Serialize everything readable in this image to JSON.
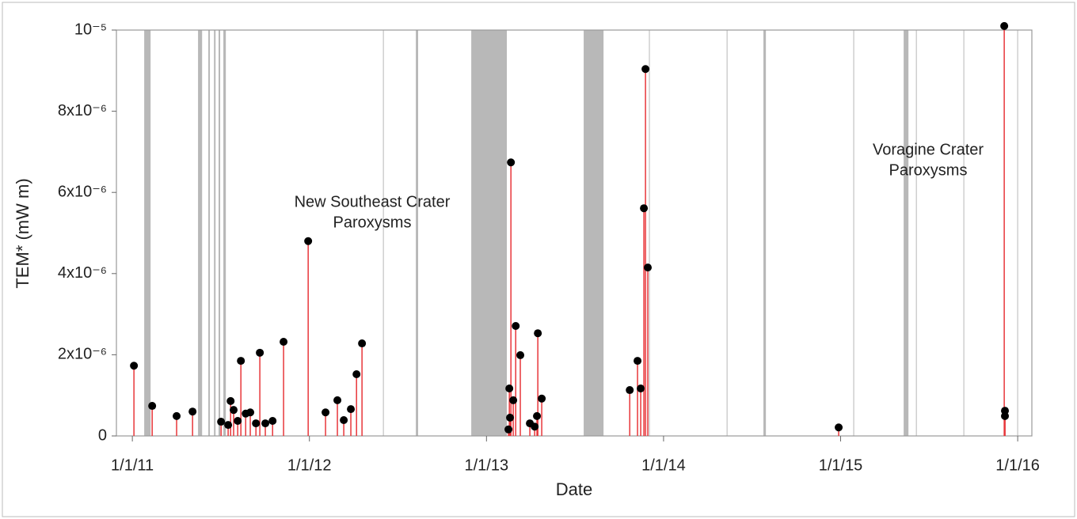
{
  "chart_data": {
    "type": "stem",
    "xlabel": "Date",
    "ylabel": "TEM* (mW m)",
    "annotations": [
      [
        "New Southeast Crater",
        "Paroxysms"
      ],
      [
        "Voragine Crater",
        "Paroxysms"
      ]
    ],
    "xlim": [
      2010.91,
      2016.08
    ],
    "xticks": [
      {
        "value": 2011,
        "label": "1/1/11"
      },
      {
        "value": 2012,
        "label": "1/1/12"
      },
      {
        "value": 2013,
        "label": "1/1/13"
      },
      {
        "value": 2014,
        "label": "1/1/14"
      },
      {
        "value": 2015,
        "label": "1/1/15"
      },
      {
        "value": 2016,
        "label": "1/1/16"
      }
    ],
    "ylim": [
      0,
      1e-05
    ],
    "yticks": [
      0,
      {
        "value": 2e-06,
        "label": "2x10⁻⁶"
      },
      {
        "value": 4e-06,
        "label": "4x10⁻⁶"
      },
      {
        "value": 6e-06,
        "label": "6x10⁻⁶"
      },
      {
        "value": 8e-06,
        "label": "8x10⁻⁶"
      },
      {
        "value": 1e-05,
        "label": "10⁻⁵"
      }
    ],
    "stem_color": "#e8363a",
    "marker_color": "#000000",
    "band_color": "#b8b8b8",
    "line_color": "#cfcfcf",
    "bands": [
      [
        2011.067,
        2011.103
      ],
      [
        2011.371,
        2011.394
      ],
      [
        2011.429,
        2011.438
      ],
      [
        2011.461,
        2011.47
      ],
      [
        2011.487,
        2011.496
      ],
      [
        2011.514,
        2011.528
      ],
      [
        2012.601,
        2012.614
      ],
      [
        2012.914,
        2013.115
      ],
      [
        2013.549,
        2013.661
      ],
      [
        2014.564,
        2014.578
      ],
      [
        2015.356,
        2015.383
      ]
    ],
    "lines": [
      2012.418,
      2013.92,
      2014.359,
      2015.074,
      2015.428,
      2015.696,
      2016.0
    ],
    "x": [
      2011.009,
      2011.112,
      2011.25,
      2011.34,
      2011.501,
      2011.541,
      2011.555,
      2011.572,
      2011.595,
      2011.613,
      2011.64,
      2011.666,
      2011.698,
      2011.72,
      2011.751,
      2011.792,
      2011.854,
      2011.993,
      2012.091,
      2012.158,
      2012.194,
      2012.234,
      2012.266,
      2012.297,
      2013.124,
      2013.129,
      2013.133,
      2013.138,
      2013.151,
      2013.165,
      2013.191,
      2013.245,
      2013.272,
      2013.285,
      2013.29,
      2013.312,
      2013.809,
      2013.853,
      2013.871,
      2013.889,
      2013.898,
      2013.911,
      2014.989,
      2015.924,
      2015.928,
      2015.928
    ],
    "values": [
      1.73e-06,
      7.4e-07,
      4.9e-07,
      6e-07,
      3.5e-07,
      2.7e-07,
      8.6e-07,
      6.4e-07,
      3.7e-07,
      1.85e-06,
      5.5e-07,
      5.8e-07,
      3.1e-07,
      2.05e-06,
      3.1e-07,
      3.7e-07,
      2.32e-06,
      4.8e-06,
      5.8e-07,
      8.8e-07,
      3.9e-07,
      6.6e-07,
      1.52e-06,
      2.28e-06,
      1.6e-07,
      1.17e-06,
      4.5e-07,
      6.74e-06,
      8.8e-07,
      2.71e-06,
      1.99e-06,
      3.1e-07,
      2.3e-07,
      4.9e-07,
      2.53e-06,
      9.2e-07,
      1.13e-06,
      1.85e-06,
      1.17e-06,
      5.61e-06,
      9.04e-06,
      4.15e-06,
      2.1e-07,
      1.01e-05,
      6.2e-07,
      4.9e-07
    ]
  }
}
